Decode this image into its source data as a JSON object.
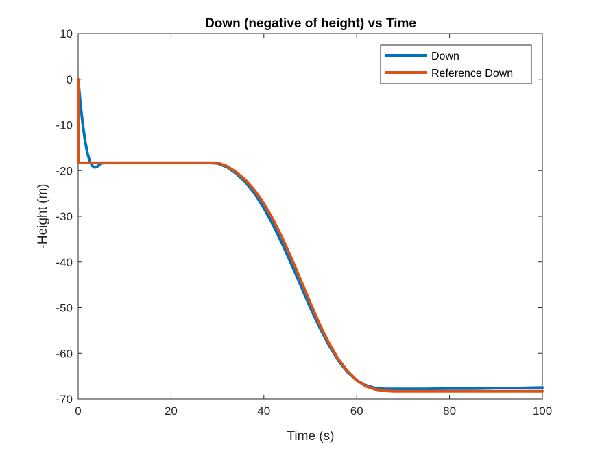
{
  "chart_data": {
    "type": "line",
    "title": "Down (negative of height) vs Time",
    "xlabel": "Time (s)",
    "ylabel": "-Height (m)",
    "xlim": [
      0,
      100
    ],
    "ylim": [
      -70,
      10
    ],
    "xticks": [
      0,
      20,
      40,
      60,
      80,
      100
    ],
    "yticks": [
      10,
      0,
      -10,
      -20,
      -30,
      -40,
      -50,
      -60,
      -70
    ],
    "grid": false,
    "legend_position": "top-right",
    "series": [
      {
        "name": "Down",
        "color": "#0072BD",
        "x": [
          0,
          0.5,
          1,
          1.5,
          2,
          2.5,
          3,
          3.5,
          4,
          4.5,
          5,
          6,
          8,
          10,
          15,
          20,
          25,
          28,
          30,
          32,
          34,
          36,
          38,
          40,
          42,
          44,
          46,
          48,
          50,
          52,
          54,
          56,
          58,
          60,
          62,
          64,
          66,
          68,
          70,
          75,
          80,
          85,
          90,
          95,
          100
        ],
        "y": [
          0,
          -5.5,
          -10,
          -13.6,
          -16.2,
          -17.9,
          -18.9,
          -19.3,
          -19.2,
          -18.8,
          -18.4,
          -18.3,
          -18.3,
          -18.3,
          -18.3,
          -18.3,
          -18.3,
          -18.3,
          -18.4,
          -19.2,
          -20.6,
          -22.5,
          -25,
          -28.2,
          -31.9,
          -36.1,
          -40.6,
          -45.3,
          -50,
          -54.3,
          -58.2,
          -61.5,
          -64.1,
          -65.9,
          -67,
          -67.6,
          -67.8,
          -67.8,
          -67.8,
          -67.8,
          -67.7,
          -67.7,
          -67.6,
          -67.6,
          -67.5
        ]
      },
      {
        "name": "Reference Down",
        "color": "#D95319",
        "x": [
          0,
          0.01,
          2,
          5,
          10,
          20,
          28,
          30,
          32,
          34,
          36,
          38,
          40,
          42,
          44,
          46,
          48,
          50,
          52,
          54,
          56,
          58,
          60,
          62,
          64,
          66,
          68,
          70,
          75,
          80,
          90,
          100
        ],
        "y": [
          0,
          -18.3,
          -18.3,
          -18.3,
          -18.3,
          -18.3,
          -18.3,
          -18.3,
          -19,
          -20.3,
          -22,
          -24.3,
          -27.2,
          -30.7,
          -34.8,
          -39.3,
          -44.1,
          -48.9,
          -53.6,
          -57.7,
          -61.2,
          -63.9,
          -65.9,
          -67.2,
          -67.9,
          -68.2,
          -68.3,
          -68.3,
          -68.3,
          -68.3,
          -68.3,
          -68.3
        ]
      }
    ]
  }
}
